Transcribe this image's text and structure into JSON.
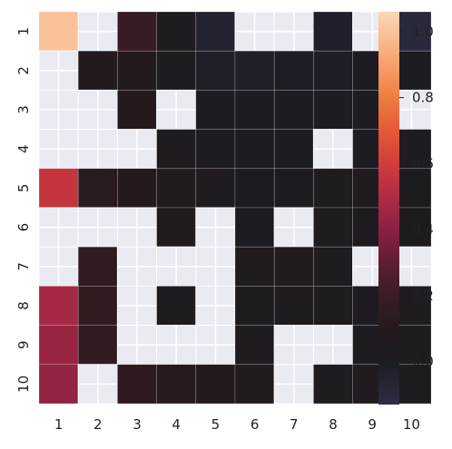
{
  "chart_data": {
    "type": "heatmap",
    "title": "",
    "xlabel": "",
    "ylabel": "",
    "x_ticks": [
      "1",
      "2",
      "3",
      "4",
      "5",
      "6",
      "7",
      "8",
      "9",
      "10"
    ],
    "y_ticks": [
      "1",
      "2",
      "3",
      "4",
      "5",
      "6",
      "7",
      "8",
      "9",
      "10"
    ],
    "colorbar": {
      "min": -0.13,
      "max": 1.06,
      "ticks": [
        0.0,
        0.2,
        0.4,
        0.6,
        0.8,
        1.0
      ],
      "tick_labels": [
        "0.0",
        "0.2",
        "0.4",
        "0.6",
        "0.8",
        "1.0"
      ]
    },
    "colormap_stops": [
      [
        -0.13,
        "#2d2d44"
      ],
      [
        0.0,
        "#1c1c22"
      ],
      [
        0.1,
        "#241a1c"
      ],
      [
        0.2,
        "#3a1c24"
      ],
      [
        0.3,
        "#5e1e33"
      ],
      [
        0.4,
        "#8a2141"
      ],
      [
        0.5,
        "#b02b45"
      ],
      [
        0.6,
        "#d13c3c"
      ],
      [
        0.7,
        "#e45a36"
      ],
      [
        0.8,
        "#ee7d3f"
      ],
      [
        0.9,
        "#f7a06b"
      ],
      [
        1.06,
        "#fbd8b8"
      ]
    ],
    "mask_color": "#eaeaf2",
    "grid_color": "#ffffff",
    "values": [
      [
        1.0,
        null,
        0.18,
        0.04,
        -0.05,
        null,
        null,
        -0.03,
        null,
        -0.1
      ],
      [
        null,
        0.08,
        0.08,
        0.02,
        -0.02,
        -0.02,
        -0.01,
        -0.01,
        0.0,
        0.0
      ],
      [
        null,
        null,
        0.1,
        null,
        0.0,
        0.0,
        0.0,
        0.0,
        0.0,
        null
      ],
      [
        null,
        null,
        null,
        0.05,
        0.0,
        0.0,
        0.0,
        null,
        0.0,
        0.0
      ],
      [
        0.56,
        0.12,
        0.1,
        0.06,
        0.04,
        0.03,
        0.03,
        0.05,
        0.04,
        0.03
      ],
      [
        null,
        null,
        null,
        0.06,
        null,
        0.0,
        null,
        0.05,
        0.03,
        0.03
      ],
      [
        null,
        0.15,
        null,
        null,
        null,
        0.05,
        0.06,
        0.05,
        null,
        null
      ],
      [
        0.47,
        0.17,
        null,
        0.05,
        null,
        0.03,
        0.03,
        0.04,
        0.03,
        0.02
      ],
      [
        0.44,
        0.17,
        null,
        null,
        null,
        0.04,
        null,
        null,
        0.02,
        0.02
      ],
      [
        0.42,
        null,
        0.14,
        0.11,
        0.08,
        0.06,
        null,
        0.04,
        0.05,
        0.03
      ]
    ]
  }
}
